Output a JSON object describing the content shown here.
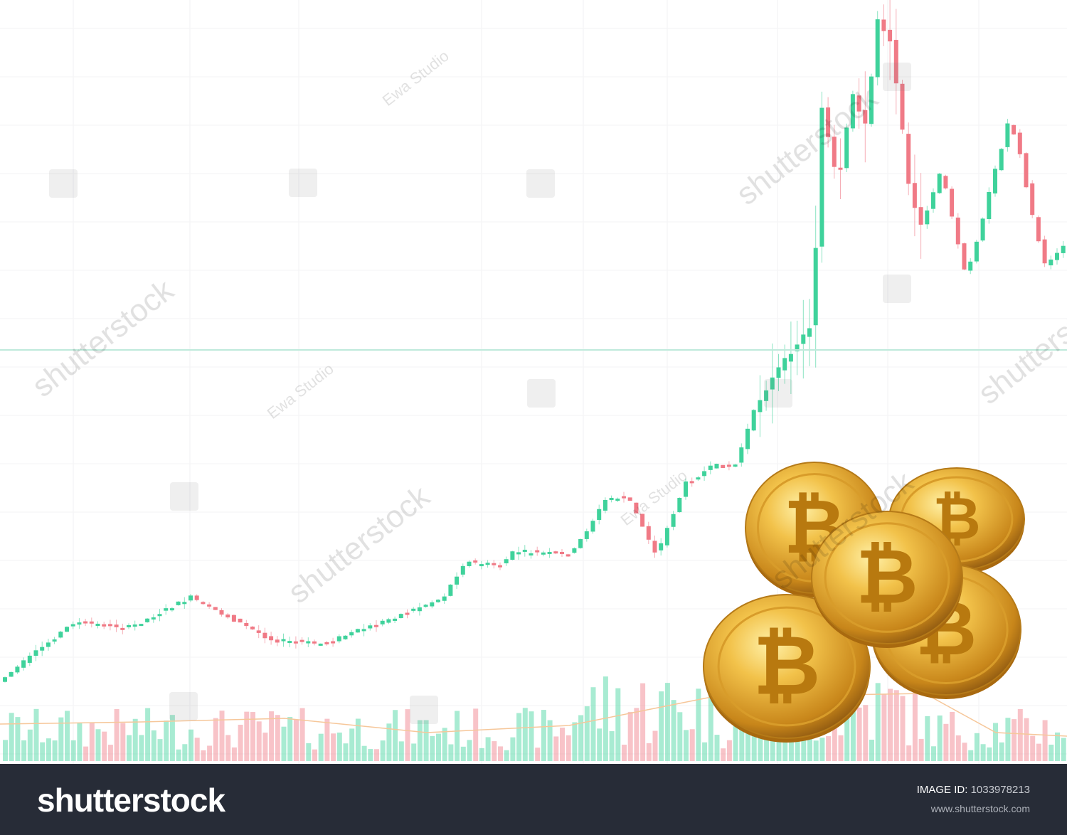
{
  "watermarks": {
    "brand": "shutterstock",
    "author": "Ewa Studio"
  },
  "footer": {
    "logo": "shutterstock",
    "image_id_label": "IMAGE ID:",
    "image_id": "1033978213",
    "website": "www.shutterstock.com"
  },
  "colors": {
    "up": "#3fd29b",
    "down": "#f07a86",
    "coin": "#e0a526",
    "footer_bg": "#272c37"
  },
  "coin_symbol": "₿"
}
